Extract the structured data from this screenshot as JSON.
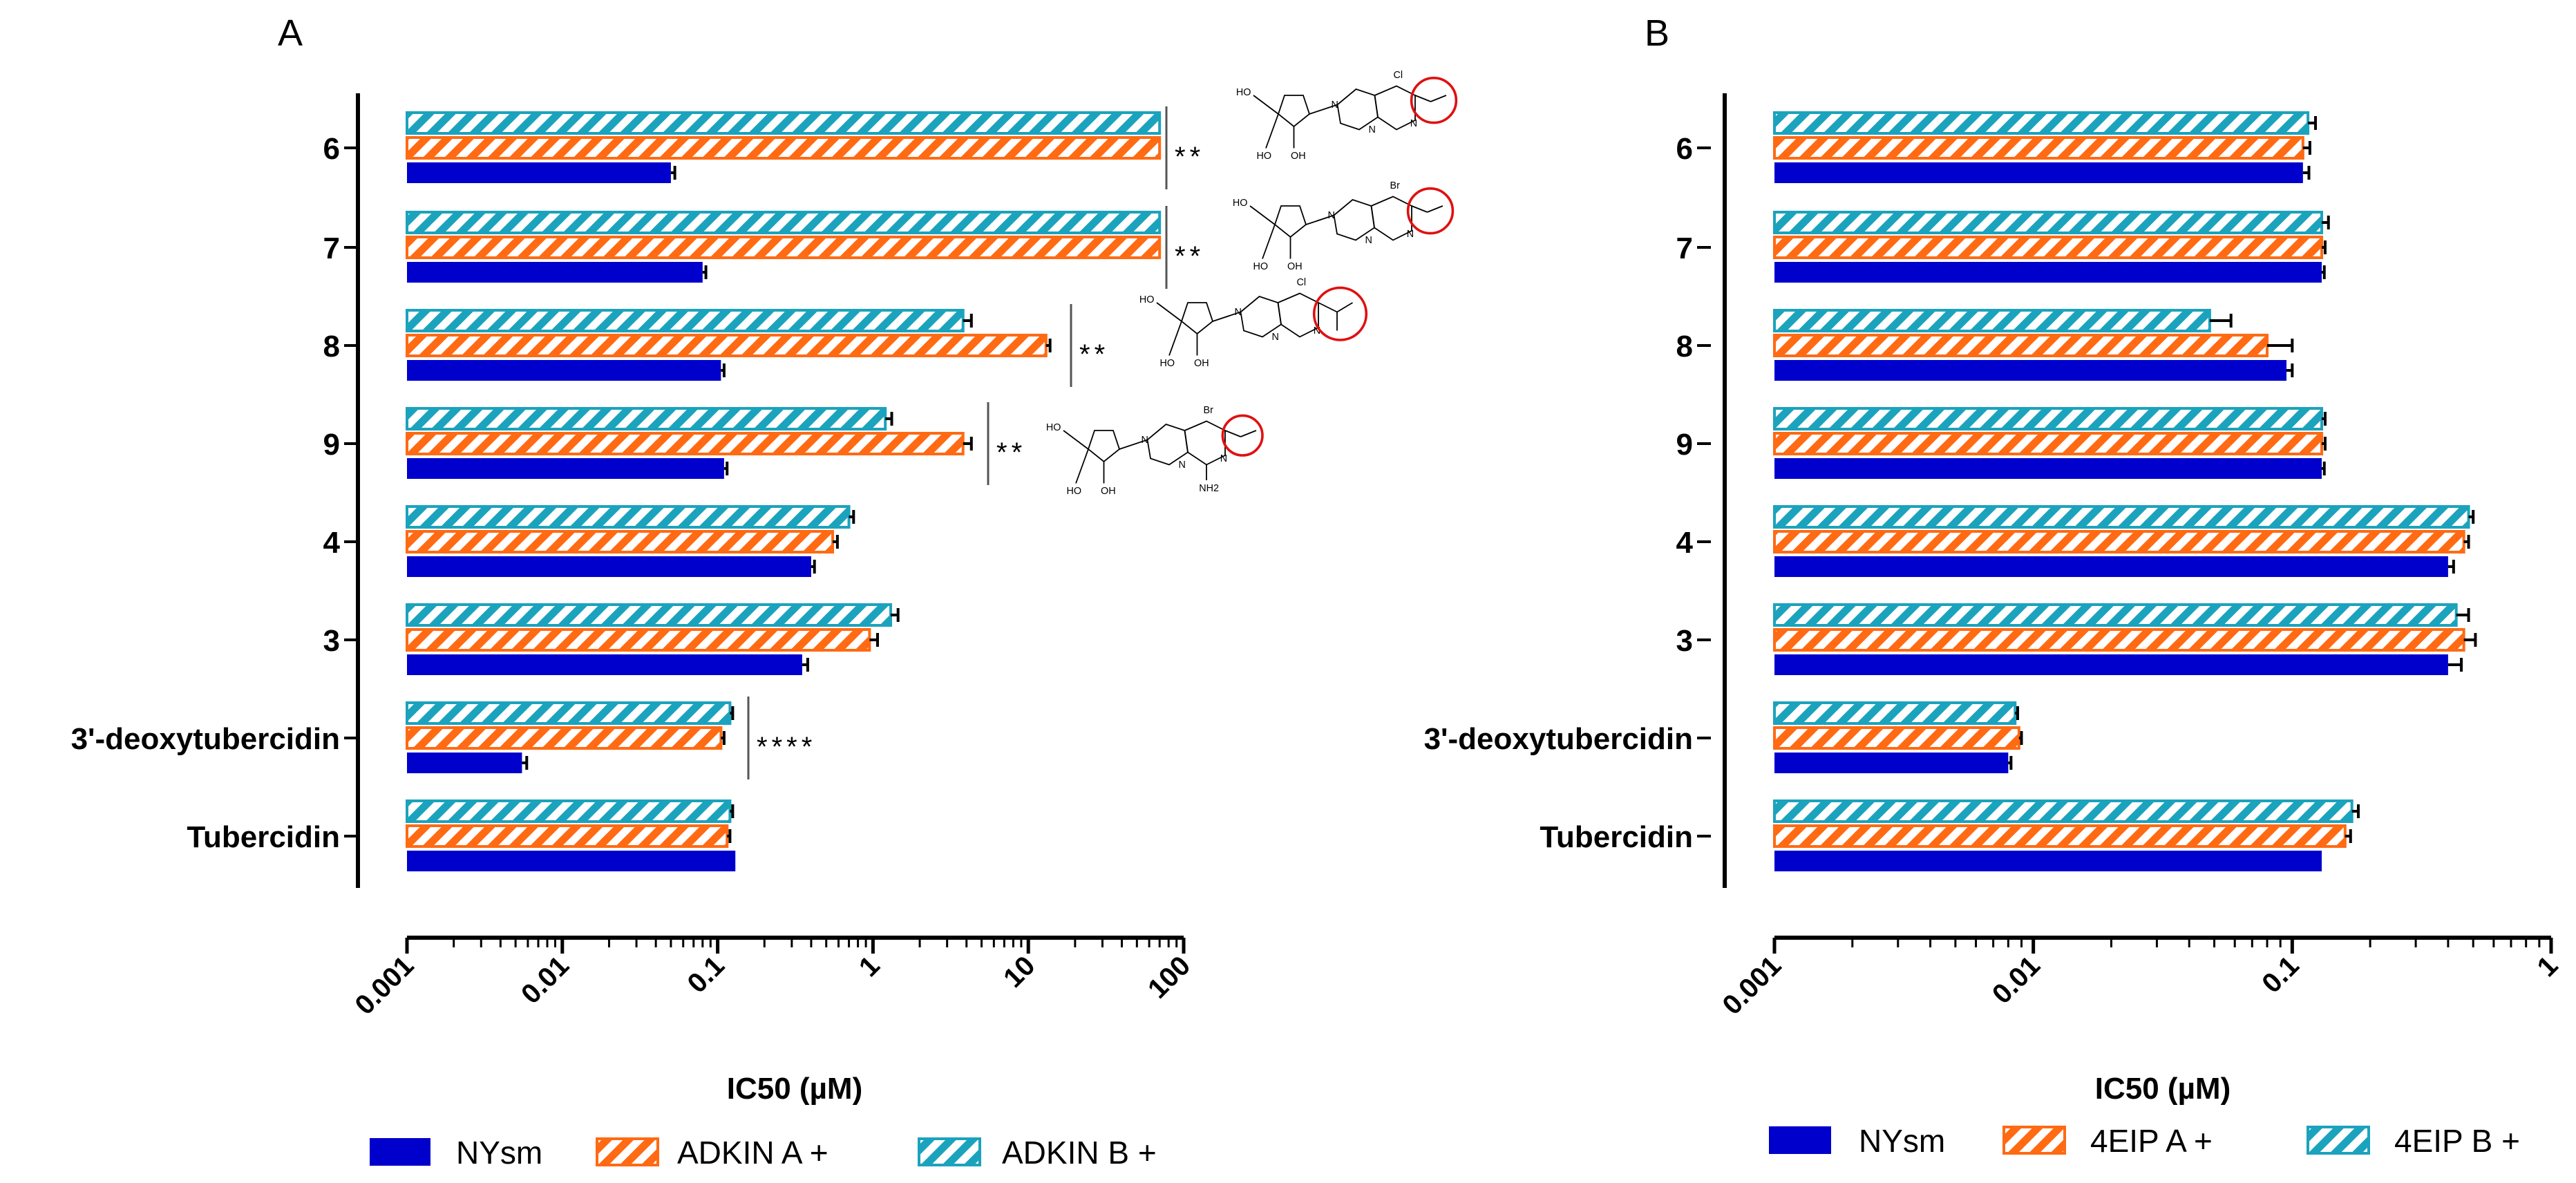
{
  "chart_data": [
    {
      "type": "bar",
      "orientation": "horizontal",
      "panel": "A",
      "categories": [
        "6",
        "7",
        "8",
        "9",
        "4",
        "3",
        "3'-deoxytubercidin",
        "Tubercidin"
      ],
      "series": [
        {
          "name": "ADKIN B +",
          "values": [
            70,
            70,
            3.8,
            1.2,
            0.7,
            1.3,
            0.12,
            0.12
          ],
          "errors": [
            0,
            0,
            0.5,
            0.12,
            0.05,
            0.15,
            0.005,
            0.005
          ]
        },
        {
          "name": "ADKIN A +",
          "values": [
            70,
            70,
            13,
            3.8,
            0.55,
            0.95,
            0.105,
            0.115
          ],
          "errors": [
            0,
            0,
            0.8,
            0.5,
            0.04,
            0.12,
            0.005,
            0.005
          ]
        },
        {
          "name": "NYsm",
          "values": [
            0.05,
            0.08,
            0.105,
            0.11,
            0.4,
            0.35,
            0.0055,
            0.13
          ],
          "errors": [
            0.003,
            0.004,
            0.005,
            0.005,
            0.02,
            0.03,
            0.0004,
            0
          ]
        }
      ],
      "significance": [
        {
          "category": "6",
          "label": "**"
        },
        {
          "category": "7",
          "label": "**"
        },
        {
          "category": "8",
          "label": "**"
        },
        {
          "category": "9",
          "label": "**"
        },
        {
          "category": "3'-deoxytubercidin",
          "label": "****"
        }
      ],
      "xscale": "log",
      "xlim": [
        0.001,
        100
      ],
      "xticks": [
        "0.001",
        "0.01",
        "0.1",
        "1",
        "10",
        "100"
      ],
      "xlabel": "IC50 (µM)",
      "ylabel": "",
      "title": "",
      "structure_labels": {
        "6": {
          "substituent": "Cl",
          "groups": [
            "HO",
            "HO",
            "OH",
            "N",
            "N",
            "N"
          ]
        },
        "7": {
          "substituent": "Br",
          "groups": [
            "HO",
            "HO",
            "OH",
            "N",
            "N",
            "N"
          ]
        },
        "8": {
          "substituent": "Cl",
          "groups": [
            "HO",
            "HO",
            "OH",
            "N",
            "N",
            "N"
          ]
        },
        "9": {
          "substituent": "Br",
          "groups": [
            "HO",
            "HO",
            "OH",
            "N",
            "N",
            "N",
            "NH2"
          ]
        }
      }
    },
    {
      "type": "bar",
      "orientation": "horizontal",
      "panel": "B",
      "categories": [
        "6",
        "7",
        "8",
        "9",
        "4",
        "3",
        "3'-deoxytubercidin",
        "Tubercidin"
      ],
      "series": [
        {
          "name": "4EIP B +",
          "values": [
            0.115,
            0.13,
            0.048,
            0.13,
            0.48,
            0.43,
            0.0085,
            0.17
          ],
          "errors": [
            0.008,
            0.008,
            0.01,
            0.004,
            0.02,
            0.05,
            0.0002,
            0.01
          ]
        },
        {
          "name": "4EIP A +",
          "values": [
            0.11,
            0.13,
            0.08,
            0.13,
            0.46,
            0.46,
            0.0088,
            0.16
          ],
          "errors": [
            0.007,
            0.004,
            0.02,
            0.004,
            0.02,
            0.05,
            0.0002,
            0.008
          ]
        },
        {
          "name": "NYsm",
          "values": [
            0.11,
            0.13,
            0.095,
            0.13,
            0.4,
            0.4,
            0.008,
            0.13
          ],
          "errors": [
            0.006,
            0.003,
            0.005,
            0.003,
            0.02,
            0.05,
            0.0002,
            0
          ]
        }
      ],
      "xscale": "log",
      "xlim": [
        0.001,
        1
      ],
      "xticks": [
        "0.001",
        "0.01",
        "0.1",
        "1"
      ],
      "xlabel": "IC50 (µM)",
      "ylabel": "",
      "title": ""
    }
  ],
  "colors": {
    "NYsm": "#0000CD",
    "A": "#FF6A13",
    "B": "#1BA3BD"
  },
  "panel_labels": [
    "A",
    "B"
  ]
}
